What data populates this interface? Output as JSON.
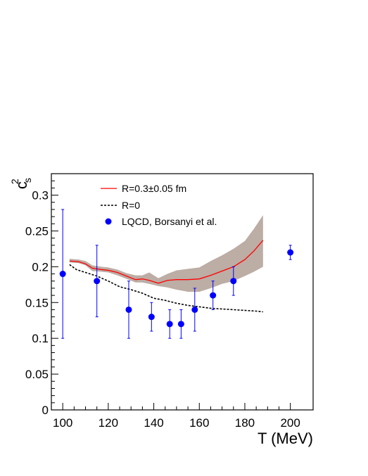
{
  "chart_data": {
    "type": "line",
    "xlabel": "T (MeV)",
    "ylabel": "c",
    "ylabel_superscript": "2",
    "ylabel_subscript": "s",
    "xlim": [
      95,
      210
    ],
    "ylim": [
      0,
      0.33
    ],
    "x_ticks": [
      100,
      120,
      140,
      160,
      180,
      200
    ],
    "y_ticks": [
      0,
      0.05,
      0.1,
      0.15,
      0.2,
      0.25,
      0.3
    ],
    "x_tick_labels": [
      "100",
      "120",
      "140",
      "160",
      "180",
      "200"
    ],
    "y_tick_labels": [
      "0",
      "0.05",
      "0.1",
      "0.15",
      "0.2",
      "0.25",
      "0.3"
    ],
    "grid": false,
    "legend_position": "top-left",
    "colors": {
      "model_line": "#ff0000",
      "band": "#bcada5",
      "r0_line": "#000000",
      "lqcd": "#0000ff"
    },
    "series": [
      {
        "name": "R=0.3±0.05 fm",
        "style": "solid-line-with-band",
        "x": [
          103,
          107,
          110,
          113,
          117,
          120,
          124,
          128,
          132,
          135,
          138,
          142,
          146,
          150,
          155,
          160,
          165,
          170,
          175,
          180,
          184,
          188
        ],
        "y": [
          0.208,
          0.207,
          0.204,
          0.198,
          0.196,
          0.195,
          0.192,
          0.187,
          0.182,
          0.183,
          0.181,
          0.177,
          0.181,
          0.182,
          0.182,
          0.183,
          0.188,
          0.194,
          0.2,
          0.21,
          0.222,
          0.237
        ],
        "band_lower": [
          0.206,
          0.205,
          0.202,
          0.194,
          0.193,
          0.192,
          0.188,
          0.183,
          0.178,
          0.178,
          0.176,
          0.173,
          0.171,
          0.168,
          0.165,
          0.165,
          0.17,
          0.176,
          0.18,
          0.187,
          0.193,
          0.2
        ],
        "band_upper": [
          0.211,
          0.21,
          0.208,
          0.202,
          0.2,
          0.199,
          0.196,
          0.191,
          0.188,
          0.188,
          0.192,
          0.184,
          0.19,
          0.195,
          0.197,
          0.199,
          0.208,
          0.216,
          0.225,
          0.236,
          0.253,
          0.272
        ]
      },
      {
        "name": "R=0",
        "style": "dashed-line",
        "x": [
          103,
          106,
          110,
          115,
          120,
          125,
          130,
          135,
          140,
          145,
          150,
          155,
          160,
          165,
          170,
          175,
          180,
          185,
          188
        ],
        "y": [
          0.203,
          0.196,
          0.192,
          0.187,
          0.18,
          0.172,
          0.168,
          0.163,
          0.156,
          0.153,
          0.149,
          0.146,
          0.144,
          0.142,
          0.141,
          0.14,
          0.139,
          0.138,
          0.137
        ]
      },
      {
        "name": "LQCD, Borsanyi et al.",
        "style": "markers-with-errorbars",
        "x": [
          100,
          115,
          129,
          139,
          147,
          152,
          158,
          166,
          175,
          200
        ],
        "y": [
          0.19,
          0.18,
          0.14,
          0.13,
          0.12,
          0.12,
          0.14,
          0.16,
          0.18,
          0.22
        ],
        "err_low": [
          0.09,
          0.05,
          0.04,
          0.02,
          0.02,
          0.02,
          0.03,
          0.02,
          0.02,
          0.01
        ],
        "err_high": [
          0.09,
          0.05,
          0.04,
          0.02,
          0.02,
          0.02,
          0.03,
          0.02,
          0.02,
          0.01
        ]
      }
    ],
    "legend": [
      {
        "label": "R=0.3±0.05 fm",
        "marker": "red-line"
      },
      {
        "label": "R=0",
        "marker": "dashed-line"
      },
      {
        "label": "LQCD, Borsanyi et al.",
        "marker": "blue-dot"
      }
    ]
  }
}
